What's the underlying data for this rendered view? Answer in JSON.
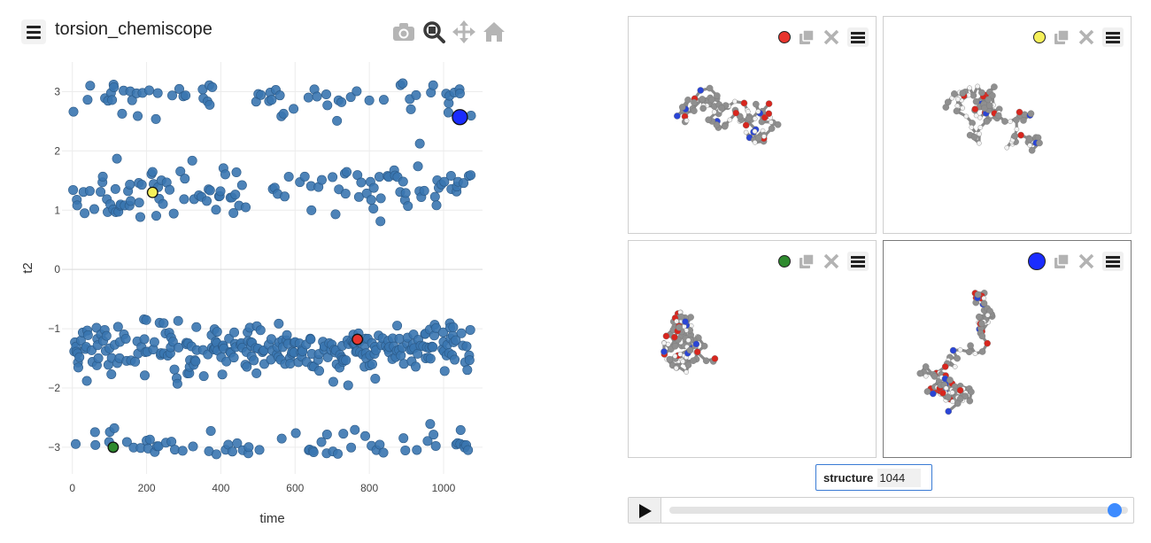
{
  "header": {
    "title": "torsion_chemiscope",
    "menu_icon": "hamburger-icon"
  },
  "modebar": [
    {
      "name": "camera-icon",
      "color": "#b5b5b5"
    },
    {
      "name": "zoom-icon",
      "color": "#3a3a3a"
    },
    {
      "name": "pan-icon",
      "color": "#b5b5b5"
    },
    {
      "name": "home-icon",
      "color": "#b5b5b5"
    }
  ],
  "chart_data": {
    "type": "scatter",
    "xlabel": "time",
    "ylabel": "t2",
    "xlim": [
      -28,
      1105
    ],
    "ylim": [
      -3.45,
      3.5
    ],
    "xticks": [
      0,
      200,
      400,
      600,
      800,
      1000
    ],
    "yticks": [
      3,
      2,
      1,
      0,
      -1,
      -2,
      -3
    ],
    "grid": true,
    "marker_color": "#3a76b0",
    "point_count": 1075,
    "note_bands": "points clustered in bands around t2 ≈ 3.0, 1.3, -1.3 and -3.0",
    "highlighted": [
      {
        "x": 768,
        "y": -1.18,
        "color": "#e8352e",
        "viewer": 1
      },
      {
        "x": 216,
        "y": 1.3,
        "color": "#f5f05a",
        "viewer": 2
      },
      {
        "x": 110,
        "y": -3.0,
        "color": "#2e8a2e",
        "viewer": 3
      },
      {
        "x": 1044,
        "y": 2.57,
        "color": "#1a2cff",
        "viewer": 4
      }
    ]
  },
  "viewers": [
    {
      "marker_color": "#e8352e",
      "marker_size": 12,
      "icons": [
        "duplicate-icon",
        "close-icon",
        "menu-icon"
      ]
    },
    {
      "marker_color": "#f5f05a",
      "marker_size": 12,
      "icons": [
        "duplicate-icon",
        "close-icon",
        "menu-icon"
      ]
    },
    {
      "marker_color": "#2e8a2e",
      "marker_size": 12,
      "icons": [
        "duplicate-icon",
        "close-icon",
        "menu-icon"
      ]
    },
    {
      "marker_color": "#1a2cff",
      "marker_size": 18,
      "icons": [
        "duplicate-icon",
        "close-icon",
        "menu-icon"
      ]
    }
  ],
  "structure": {
    "label": "structure",
    "value": "1044"
  },
  "player": {
    "play_icon": "play-icon",
    "progress": 0.971
  }
}
